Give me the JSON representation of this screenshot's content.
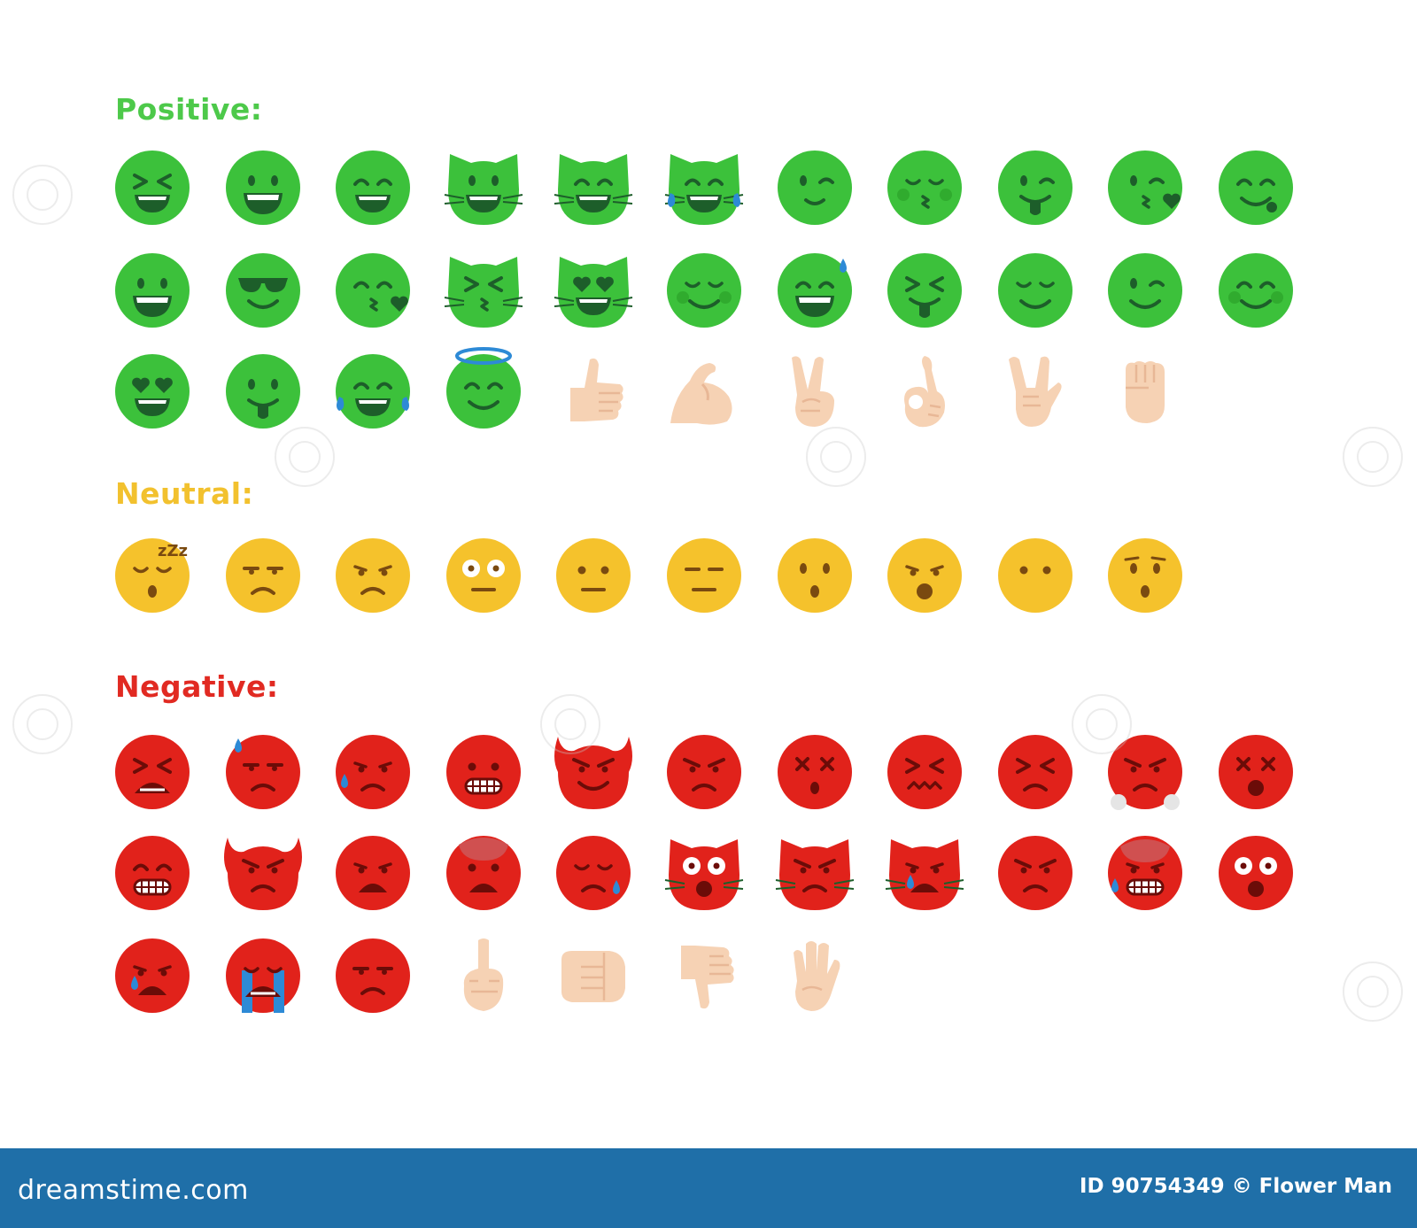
{
  "sections": [
    {
      "id": "positive",
      "title": "Positive:",
      "color": "#4dc94a",
      "rows": [
        [
          "xd-grin",
          "grin",
          "smile-open",
          "cat-grin",
          "cat-wink",
          "cat-joy",
          "grin-wink",
          "kiss-blush",
          "tongue-wink",
          "kiss-heart",
          "yum"
        ],
        [
          "big-smile",
          "sunglasses",
          "kiss-wink",
          "cat-kiss",
          "cat-heart-eyes",
          "blush",
          "sweat-smile",
          "xd-tongue",
          "relieved",
          "wink",
          "happy-blush"
        ],
        [
          "heart-eyes",
          "tongue",
          "joy",
          "halo",
          "thumbs-up-hand",
          "flexed-bicep-hand",
          "victory-hand",
          "ok-hand",
          "rock-hand",
          "raised-fist-hand"
        ]
      ]
    },
    {
      "id": "neutral",
      "title": "Neutral:",
      "color": "#f2c12e",
      "rows": [
        [
          "sleeping",
          "unamused",
          "worried",
          "flushed",
          "neutral",
          "expressionless",
          "hushed",
          "frowning-open",
          "no-mouth",
          "astonished"
        ]
      ]
    },
    {
      "id": "negative",
      "title": "Negative:",
      "color": "#e12a22",
      "rows": [
        [
          "tired",
          "sweat-sad",
          "disappointed-relieved",
          "grimace",
          "devil-smile",
          "pouting",
          "dizzy",
          "confounded",
          "persevere",
          "triumph",
          "dizzy-open"
        ],
        [
          "grimace-2",
          "devil-angry",
          "anguished",
          "fearful",
          "sleepy-tear",
          "cat-scream",
          "cat-pout",
          "cat-crying",
          "angry",
          "cold-sweat",
          "scream"
        ],
        [
          "sad-tear",
          "sob",
          "disappointed",
          "middle-finger-hand",
          "fist-bump-hand",
          "thumbs-down-hand",
          "raised-hand"
        ]
      ]
    }
  ],
  "colors": {
    "positive": "#3cc13b",
    "neutral": "#f5c22c",
    "negative": "#e1221b",
    "feature_dark": "#1d5e2a",
    "skin": "#f6d2b4",
    "skin_shade": "#e8b796",
    "tear": "#2d8ad6",
    "white": "#ffffff",
    "footer": "#1f6fa8"
  },
  "footer": {
    "logo": "dreamstime.com",
    "credit": "ID 90754349 © Flower Man"
  }
}
